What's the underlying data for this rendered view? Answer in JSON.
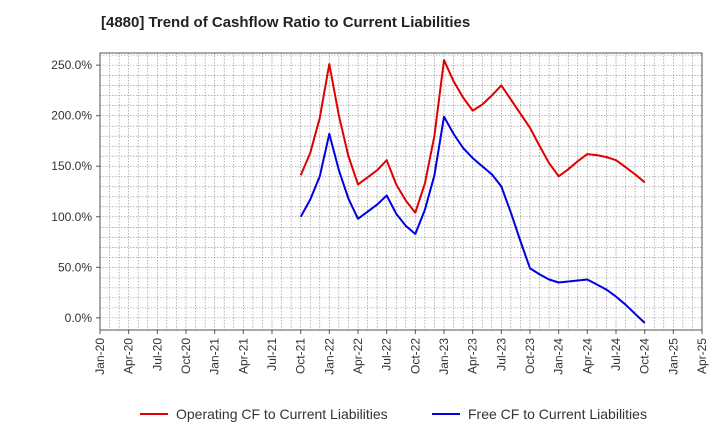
{
  "chart_data": {
    "type": "line",
    "title": "[4880]  Trend of Cashflow Ratio to Current Liabilities",
    "xlabel": "",
    "ylabel": "",
    "x_ticks": [
      "Jan-20",
      "Apr-20",
      "Jul-20",
      "Oct-20",
      "Jan-21",
      "Apr-21",
      "Jul-21",
      "Oct-21",
      "Jan-22",
      "Apr-22",
      "Jul-22",
      "Oct-22",
      "Jan-23",
      "Apr-23",
      "Jul-23",
      "Oct-23",
      "Jan-24",
      "Apr-24",
      "Jul-24",
      "Oct-24",
      "Jan-25",
      "Apr-25"
    ],
    "y_ticks": [
      "0.0%",
      "50.0%",
      "100.0%",
      "150.0%",
      "200.0%",
      "250.0%"
    ],
    "y_tick_values": [
      0,
      50,
      100,
      150,
      200,
      250
    ],
    "ylim": [
      -12,
      262
    ],
    "grid": true,
    "legend_position": "bottom",
    "series": [
      {
        "name": "Operating CF to Current Liabilities",
        "color": "#e00000",
        "x": [
          "Oct-21",
          "Nov-21",
          "Dec-21",
          "Jan-22",
          "Feb-22",
          "Mar-22",
          "Apr-22",
          "May-22",
          "Jun-22",
          "Jul-22",
          "Aug-22",
          "Sep-22",
          "Oct-22",
          "Nov-22",
          "Dec-22",
          "Jan-23",
          "Feb-23",
          "Mar-23",
          "Apr-23",
          "May-23",
          "Jun-23",
          "Jul-23",
          "Aug-23",
          "Sep-23",
          "Oct-23",
          "Nov-23",
          "Dec-23",
          "Jan-24",
          "Feb-24",
          "Mar-24",
          "Apr-24",
          "May-24",
          "Jun-24",
          "Jul-24",
          "Aug-24",
          "Sep-24",
          "Oct-24"
        ],
        "y": [
          141,
          163,
          198,
          251,
          200,
          160,
          132,
          139,
          146,
          156,
          132,
          116,
          104,
          133,
          180,
          255,
          234,
          218,
          205,
          211,
          220,
          230,
          216,
          202,
          188,
          170,
          153,
          140,
          147,
          155,
          162,
          161,
          159,
          156,
          149,
          142,
          134
        ]
      },
      {
        "name": "Free CF to Current Liabilities",
        "color": "#0000e0",
        "x": [
          "Oct-21",
          "Nov-21",
          "Dec-21",
          "Jan-22",
          "Feb-22",
          "Mar-22",
          "Apr-22",
          "May-22",
          "Jun-22",
          "Jul-22",
          "Aug-22",
          "Sep-22",
          "Oct-22",
          "Nov-22",
          "Dec-22",
          "Jan-23",
          "Feb-23",
          "Mar-23",
          "Apr-23",
          "May-23",
          "Jun-23",
          "Jul-23",
          "Aug-23",
          "Sep-23",
          "Oct-23",
          "Nov-23",
          "Dec-23",
          "Jan-24",
          "Feb-24",
          "Mar-24",
          "Apr-24",
          "May-24",
          "Jun-24",
          "Jul-24",
          "Aug-24",
          "Sep-24",
          "Oct-24"
        ],
        "y": [
          100,
          117,
          140,
          182,
          146,
          118,
          98,
          105,
          112,
          121,
          103,
          91,
          83,
          107,
          141,
          199,
          182,
          168,
          158,
          150,
          142,
          130,
          104,
          76,
          49,
          43,
          38,
          35,
          36,
          37,
          38,
          33,
          28,
          21,
          13,
          4,
          -5
        ]
      }
    ]
  }
}
